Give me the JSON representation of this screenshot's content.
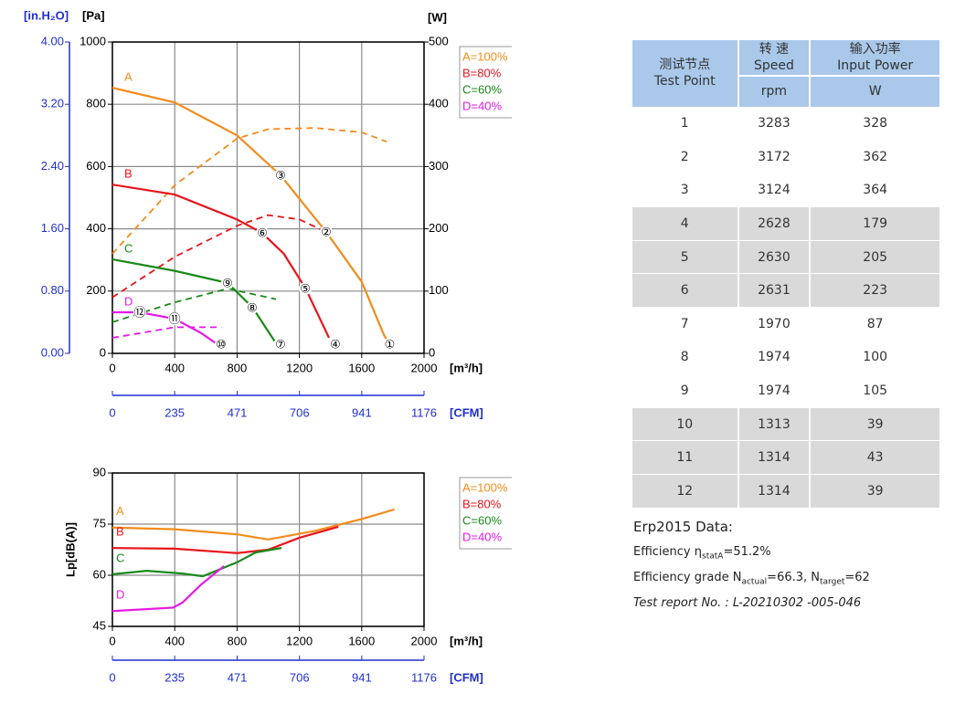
{
  "chart_data": [
    {
      "type": "line",
      "xlabel": "[m³/h]",
      "ylabel": "[Pa]",
      "yalt_label": "[in.H₂O]",
      "y2label": "[W]",
      "x2label": "[CFM]",
      "xlim": [
        0,
        2000
      ],
      "xticks": [
        0,
        400,
        800,
        1200,
        1600,
        2000
      ],
      "ylim": [
        0,
        1000
      ],
      "yticks": [
        0,
        200,
        400,
        600,
        800,
        1000
      ],
      "yalt_lim": [
        0,
        4
      ],
      "yalt_ticks": [
        {
          "value": 0,
          "label": "0.00"
        },
        {
          "value": 0.8,
          "label": "0.80"
        },
        {
          "value": 1.6,
          "label": "1.60"
        },
        {
          "value": 2.4,
          "label": "2.40"
        },
        {
          "value": 3.2,
          "label": "3.20"
        },
        {
          "value": 4,
          "label": "4.00"
        }
      ],
      "y2lim": [
        0,
        500
      ],
      "y2ticks": [
        0,
        100,
        200,
        300,
        400,
        500
      ],
      "x2lim": [
        0,
        1176
      ],
      "x2ticks": [
        0,
        235,
        471,
        706,
        941,
        1176
      ],
      "grid": true,
      "series": [
        {
          "name": "A=100%",
          "label": "A",
          "color": "#f28c1c",
          "x": [
            0,
            400,
            800,
            1079,
            1372,
            1600,
            1742,
            1775
          ],
          "values": [
            853,
            806,
            700,
            572,
            390,
            230,
            60,
            30
          ],
          "power": {
            "axis": "y2",
            "x": [
              0,
              400,
              800,
              1000,
              1300,
              1600,
              1760
            ],
            "values": [
              160,
              270,
              345,
              360,
              362,
              355,
              340
            ]
          }
        },
        {
          "name": "B=80%",
          "label": "B",
          "color": "#e8141b",
          "x": [
            0,
            400,
            800,
            960,
            1100,
            1240,
            1390
          ],
          "values": [
            542,
            510,
            430,
            387,
            320,
            208,
            50
          ],
          "power": {
            "axis": "y2",
            "x": [
              0,
              400,
              800,
              1000,
              1200,
              1372
            ],
            "values": [
              90,
              155,
              205,
              222,
              215,
              195
            ]
          }
        },
        {
          "name": "C=60%",
          "label": "C",
          "color": "#1a8a1a",
          "x": [
            0,
            400,
            740,
            900,
            1040
          ],
          "values": [
            302,
            265,
            226,
            147,
            40
          ],
          "power": {
            "axis": "y2",
            "x": [
              0,
              400,
              740,
              1050
            ],
            "values": [
              50,
              82,
              104,
              87
            ]
          }
        },
        {
          "name": "D=40%",
          "label": "D",
          "color": "#e619e6",
          "x": [
            0,
            176,
            400,
            570,
            700
          ],
          "values": [
            132,
            132,
            111,
            65,
            20
          ],
          "power": {
            "axis": "y2",
            "x": [
              0,
              400,
              700
            ],
            "values": [
              25,
              42,
              42
            ]
          }
        }
      ],
      "operating_points": [
        {
          "label": "①",
          "x": 1780,
          "y": 30
        },
        {
          "label": "②",
          "x": 1372,
          "y": 390
        },
        {
          "label": "③",
          "x": 1079,
          "y": 572
        },
        {
          "label": "④",
          "x": 1431,
          "y": 30
        },
        {
          "label": "⑤",
          "x": 1238,
          "y": 208
        },
        {
          "label": "⑥",
          "x": 962,
          "y": 387
        },
        {
          "label": "⑦",
          "x": 1079,
          "y": 30
        },
        {
          "label": "⑧",
          "x": 897,
          "y": 147
        },
        {
          "label": "⑨",
          "x": 739,
          "y": 226
        },
        {
          "label": "⑩",
          "x": 698,
          "y": 30
        },
        {
          "label": "⑪",
          "x": 399,
          "y": 111
        },
        {
          "label": "⑫",
          "x": 176,
          "y": 132
        }
      ]
    },
    {
      "type": "line",
      "xlabel": "[m³/h]",
      "ylabel": "Lp[dB(A)]",
      "x2label": "[CFM]",
      "xlim": [
        0,
        2000
      ],
      "xticks": [
        0,
        400,
        800,
        1200,
        1600,
        2000
      ],
      "ylim": [
        45,
        90
      ],
      "yticks": [
        45,
        60,
        75,
        90
      ],
      "x2lim": [
        0,
        1176
      ],
      "x2ticks": [
        0,
        235,
        471,
        706,
        941,
        1176
      ],
      "grid": true,
      "series": [
        {
          "name": "A=100%",
          "label": "A",
          "color": "#f28c1c",
          "x": [
            0,
            400,
            800,
            1000,
            1300,
            1600,
            1810
          ],
          "values": [
            74,
            73.5,
            72,
            70.5,
            73,
            76.5,
            79.3
          ]
        },
        {
          "name": "B=80%",
          "label": "B",
          "color": "#e8141b",
          "x": [
            0,
            400,
            800,
            1000,
            1200,
            1450
          ],
          "values": [
            68,
            67.8,
            66.5,
            67.5,
            71,
            74.2
          ]
        },
        {
          "name": "C=60%",
          "label": "C",
          "color": "#1a8a1a",
          "x": [
            0,
            220,
            450,
            580,
            800,
            920,
            1085
          ],
          "values": [
            60.3,
            61.3,
            60.5,
            59.7,
            63.8,
            66.7,
            68
          ]
        },
        {
          "name": "D=40%",
          "label": "D",
          "color": "#e619e6",
          "x": [
            0,
            390,
            450,
            570,
            716
          ],
          "values": [
            49.5,
            50.5,
            52,
            57.3,
            62.7
          ]
        }
      ]
    }
  ],
  "table": {
    "columns": [
      {
        "zh": "测试节点",
        "en": "Test Point"
      },
      {
        "zh": "转 速",
        "en": "Speed",
        "unit": "rpm"
      },
      {
        "zh": "输入功率",
        "en": "Input Power",
        "unit": "W"
      }
    ],
    "rows": [
      [
        1,
        3283,
        328
      ],
      [
        2,
        3172,
        362
      ],
      [
        3,
        3124,
        364
      ],
      [
        4,
        2628,
        179
      ],
      [
        5,
        2630,
        205
      ],
      [
        6,
        2631,
        223
      ],
      [
        7,
        1970,
        87
      ],
      [
        8,
        1974,
        100
      ],
      [
        9,
        1974,
        105
      ],
      [
        10,
        1313,
        39
      ],
      [
        11,
        1314,
        43
      ],
      [
        12,
        1314,
        39
      ]
    ]
  },
  "erp": {
    "title": "Erp2015  Data:",
    "efficiency": {
      "label": "Efficiency",
      "symbol": "η",
      "sub": "statA",
      "text": "=51.2%"
    },
    "grade": {
      "label": "Efficiency grade",
      "n1": "N",
      "sub1": "actual",
      "text1": "=66.3, ",
      "n2": "N",
      "sub2": "target",
      "text2": "=62"
    },
    "report": "Test report No. : L-20210302 -005-046"
  }
}
